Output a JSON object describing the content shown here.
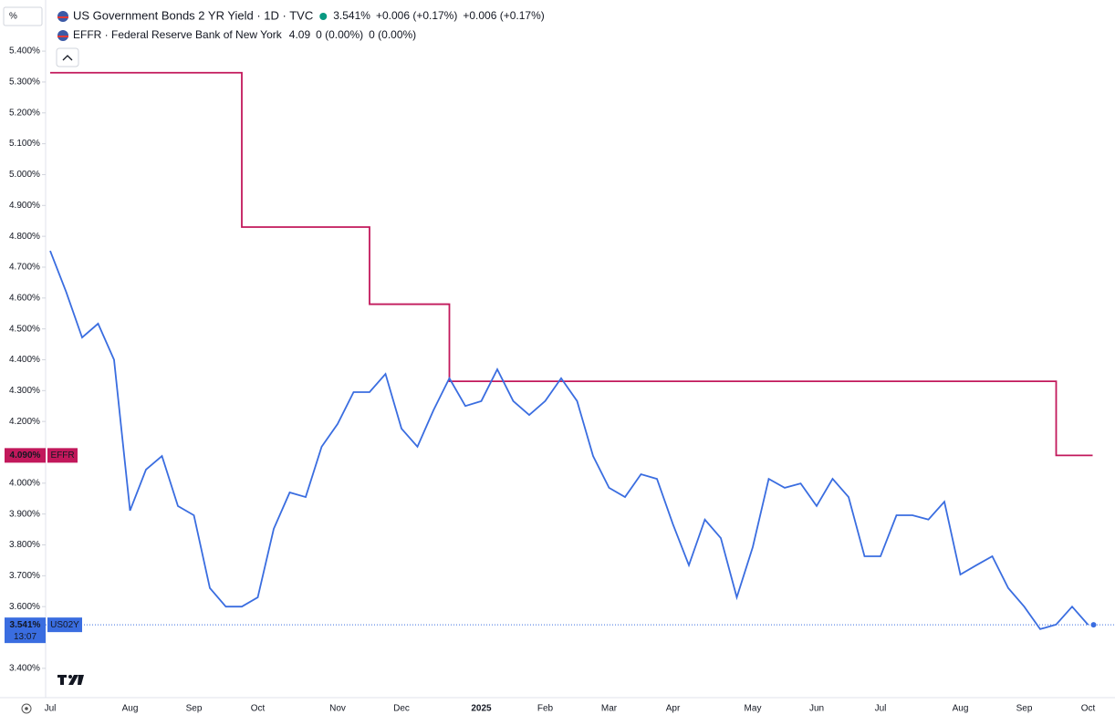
{
  "chart_data": {
    "type": "line",
    "unit_label": "%",
    "header": [
      {
        "title": "US Government Bonds 2 YR Yield · 1D · TVC",
        "price": "3.541%",
        "change": "+0.006 (+0.17%)",
        "change2": "+0.006 (+0.17%)"
      },
      {
        "title": "EFFR · Federal Reserve Bank of New York",
        "price": "4.09",
        "change": "0 (0.00%)",
        "change2": "0 (0.00%)"
      }
    ],
    "categories": [
      "Jul",
      null,
      null,
      null,
      null,
      "Aug",
      null,
      null,
      null,
      "Sep",
      null,
      null,
      null,
      "Oct",
      null,
      null,
      null,
      null,
      "Nov",
      null,
      null,
      null,
      "Dec",
      null,
      null,
      null,
      null,
      "2025",
      null,
      null,
      null,
      "Feb",
      null,
      null,
      null,
      "Mar",
      null,
      null,
      null,
      "Apr",
      null,
      null,
      null,
      null,
      "May",
      null,
      null,
      null,
      "Jun",
      null,
      null,
      null,
      "Jul",
      null,
      null,
      null,
      null,
      "Aug",
      null,
      null,
      null,
      "Sep",
      null,
      null,
      null,
      "Oct"
    ],
    "series": [
      {
        "name": "US02Y",
        "color": "#3a6de0",
        "step": false,
        "badge_label": "3.541%",
        "countdown": "13:07",
        "values": [
          4.753,
          4.62,
          4.472,
          4.517,
          4.4,
          3.911,
          4.044,
          4.088,
          3.926,
          3.896,
          3.66,
          3.6,
          3.6,
          3.63,
          3.852,
          3.97,
          3.955,
          4.118,
          4.192,
          4.295,
          4.295,
          4.354,
          4.177,
          4.118,
          4.236,
          4.34,
          4.25,
          4.266,
          4.369,
          4.266,
          4.221,
          4.266,
          4.34,
          4.266,
          4.088,
          3.985,
          3.955,
          4.029,
          4.014,
          3.867,
          3.734,
          3.882,
          3.822,
          3.63,
          3.793,
          4.014,
          3.985,
          3.999,
          3.926,
          4.014,
          3.955,
          3.763,
          3.763,
          3.896,
          3.896,
          3.882,
          3.94,
          3.704,
          3.734,
          3.763,
          3.66,
          3.6,
          3.527,
          3.542,
          3.6,
          3.541
        ]
      },
      {
        "name": "EFFR",
        "color": "#c2185b",
        "step": true,
        "badge_label": "4.090%",
        "values": [
          5.33,
          5.33,
          5.33,
          5.33,
          5.33,
          5.33,
          5.33,
          5.33,
          5.33,
          5.33,
          5.33,
          5.33,
          4.83,
          4.83,
          4.83,
          4.83,
          4.83,
          4.83,
          4.83,
          4.83,
          4.58,
          4.58,
          4.58,
          4.58,
          4.58,
          4.33,
          4.33,
          4.33,
          4.33,
          4.33,
          4.33,
          4.33,
          4.33,
          4.33,
          4.33,
          4.33,
          4.33,
          4.33,
          4.33,
          4.33,
          4.33,
          4.33,
          4.33,
          4.33,
          4.33,
          4.33,
          4.33,
          4.33,
          4.33,
          4.33,
          4.33,
          4.33,
          4.33,
          4.33,
          4.33,
          4.33,
          4.33,
          4.33,
          4.33,
          4.33,
          4.33,
          4.33,
          4.33,
          4.09,
          4.09,
          4.09
        ]
      }
    ],
    "ylim": [
      3.305,
      5.551
    ],
    "yticks": [
      {
        "value": 3.4,
        "label": "3.400%"
      },
      {
        "value": 3.6,
        "label": "3.600%"
      },
      {
        "value": 3.7,
        "label": "3.700%"
      },
      {
        "value": 3.8,
        "label": "3.800%"
      },
      {
        "value": 3.9,
        "label": "3.900%"
      },
      {
        "value": 4.0,
        "label": "4.000%"
      },
      {
        "value": 4.2,
        "label": "4.200%"
      },
      {
        "value": 4.3,
        "label": "4.300%"
      },
      {
        "value": 4.4,
        "label": "4.400%"
      },
      {
        "value": 4.5,
        "label": "4.500%"
      },
      {
        "value": 4.6,
        "label": "4.600%"
      },
      {
        "value": 4.7,
        "label": "4.700%"
      },
      {
        "value": 4.8,
        "label": "4.800%"
      },
      {
        "value": 4.9,
        "label": "4.900%"
      },
      {
        "value": 5.0,
        "label": "5.000%"
      },
      {
        "value": 5.1,
        "label": "5.100%"
      },
      {
        "value": 5.2,
        "label": "5.200%"
      },
      {
        "value": 5.3,
        "label": "5.300%"
      },
      {
        "value": 5.4,
        "label": "5.400%"
      }
    ],
    "grid": false,
    "y_axis_side": "left"
  }
}
